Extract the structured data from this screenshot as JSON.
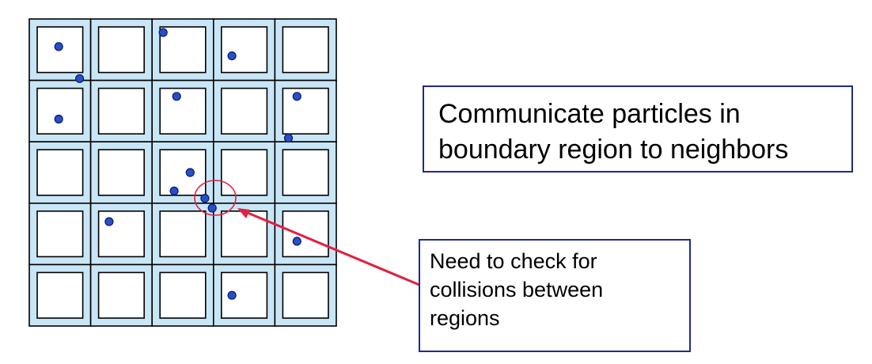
{
  "colors": {
    "cell_fill": "#c9e6f7",
    "grid_line": "#000000",
    "inner_square_fill": "#ffffff",
    "particle_fill": "#2750c8",
    "particle_stroke": "#0a1a66",
    "highlight": "#e02040",
    "callout_border": "#1f2a8f"
  },
  "grid": {
    "rows": 5,
    "cols": 5
  },
  "particles": [
    {
      "row": 0,
      "col": 0,
      "fx": 0.48,
      "fy": 0.45
    },
    {
      "row": 0,
      "col": 0,
      "fx": 0.82,
      "fy": 0.97
    },
    {
      "row": 0,
      "col": 2,
      "fx": 0.18,
      "fy": 0.22
    },
    {
      "row": 0,
      "col": 3,
      "fx": 0.3,
      "fy": 0.6
    },
    {
      "row": 1,
      "col": 0,
      "fx": 0.48,
      "fy": 0.63
    },
    {
      "row": 1,
      "col": 2,
      "fx": 0.4,
      "fy": 0.26
    },
    {
      "row": 1,
      "col": 4,
      "fx": 0.36,
      "fy": 0.26
    },
    {
      "row": 1,
      "col": 4,
      "fx": 0.22,
      "fy": 0.94
    },
    {
      "row": 2,
      "col": 2,
      "fx": 0.62,
      "fy": 0.5
    },
    {
      "row": 2,
      "col": 2,
      "fx": 0.36,
      "fy": 0.8
    },
    {
      "row": 2,
      "col": 2,
      "fx": 0.86,
      "fy": 0.92
    },
    {
      "row": 3,
      "col": 2,
      "fx": 0.98,
      "fy": 0.08
    },
    {
      "row": 3,
      "col": 1,
      "fx": 0.3,
      "fy": 0.3
    },
    {
      "row": 3,
      "col": 4,
      "fx": 0.36,
      "fy": 0.62
    },
    {
      "row": 4,
      "col": 3,
      "fx": 0.3,
      "fy": 0.5
    }
  ],
  "callouts": {
    "communicate": {
      "lines": [
        "Communicate particles in",
        "boundary region to neighbors"
      ]
    },
    "collisions": {
      "lines": [
        "Need to check for",
        "collisions between",
        "regions"
      ]
    }
  }
}
